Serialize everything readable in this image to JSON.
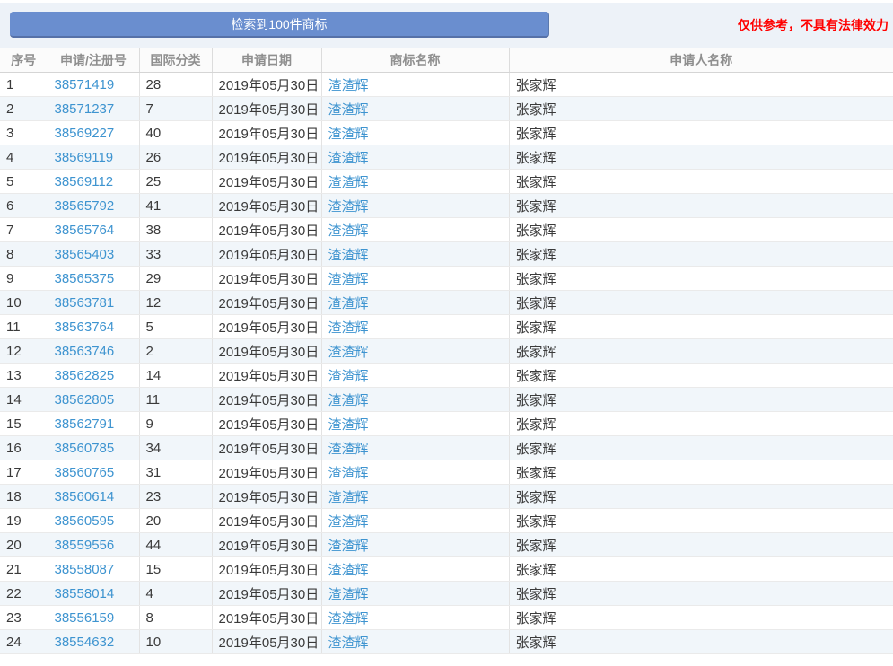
{
  "topbar": {
    "result_banner": "检索到100件商标",
    "disclaimer": "仅供参考，不具有法律效力"
  },
  "table": {
    "columns": [
      "序号",
      "申请/注册号",
      "国际分类",
      "申请日期",
      "商标名称",
      "申请人名称"
    ],
    "rows": [
      {
        "index": "1",
        "reg_no": "38571419",
        "intl_class": "28",
        "date": "2019年05月30日",
        "trademark": "渣渣辉",
        "applicant": "张家辉"
      },
      {
        "index": "2",
        "reg_no": "38571237",
        "intl_class": "7",
        "date": "2019年05月30日",
        "trademark": "渣渣辉",
        "applicant": "张家辉"
      },
      {
        "index": "3",
        "reg_no": "38569227",
        "intl_class": "40",
        "date": "2019年05月30日",
        "trademark": "渣渣辉",
        "applicant": "张家辉"
      },
      {
        "index": "4",
        "reg_no": "38569119",
        "intl_class": "26",
        "date": "2019年05月30日",
        "trademark": "渣渣辉",
        "applicant": "张家辉"
      },
      {
        "index": "5",
        "reg_no": "38569112",
        "intl_class": "25",
        "date": "2019年05月30日",
        "trademark": "渣渣辉",
        "applicant": "张家辉"
      },
      {
        "index": "6",
        "reg_no": "38565792",
        "intl_class": "41",
        "date": "2019年05月30日",
        "trademark": "渣渣辉",
        "applicant": "张家辉"
      },
      {
        "index": "7",
        "reg_no": "38565764",
        "intl_class": "38",
        "date": "2019年05月30日",
        "trademark": "渣渣辉",
        "applicant": "张家辉"
      },
      {
        "index": "8",
        "reg_no": "38565403",
        "intl_class": "33",
        "date": "2019年05月30日",
        "trademark": "渣渣辉",
        "applicant": "张家辉"
      },
      {
        "index": "9",
        "reg_no": "38565375",
        "intl_class": "29",
        "date": "2019年05月30日",
        "trademark": "渣渣辉",
        "applicant": "张家辉"
      },
      {
        "index": "10",
        "reg_no": "38563781",
        "intl_class": "12",
        "date": "2019年05月30日",
        "trademark": "渣渣辉",
        "applicant": "张家辉"
      },
      {
        "index": "11",
        "reg_no": "38563764",
        "intl_class": "5",
        "date": "2019年05月30日",
        "trademark": "渣渣辉",
        "applicant": "张家辉"
      },
      {
        "index": "12",
        "reg_no": "38563746",
        "intl_class": "2",
        "date": "2019年05月30日",
        "trademark": "渣渣辉",
        "applicant": "张家辉"
      },
      {
        "index": "13",
        "reg_no": "38562825",
        "intl_class": "14",
        "date": "2019年05月30日",
        "trademark": "渣渣辉",
        "applicant": "张家辉"
      },
      {
        "index": "14",
        "reg_no": "38562805",
        "intl_class": "11",
        "date": "2019年05月30日",
        "trademark": "渣渣辉",
        "applicant": "张家辉"
      },
      {
        "index": "15",
        "reg_no": "38562791",
        "intl_class": "9",
        "date": "2019年05月30日",
        "trademark": "渣渣辉",
        "applicant": "张家辉"
      },
      {
        "index": "16",
        "reg_no": "38560785",
        "intl_class": "34",
        "date": "2019年05月30日",
        "trademark": "渣渣辉",
        "applicant": "张家辉"
      },
      {
        "index": "17",
        "reg_no": "38560765",
        "intl_class": "31",
        "date": "2019年05月30日",
        "trademark": "渣渣辉",
        "applicant": "张家辉"
      },
      {
        "index": "18",
        "reg_no": "38560614",
        "intl_class": "23",
        "date": "2019年05月30日",
        "trademark": "渣渣辉",
        "applicant": "张家辉"
      },
      {
        "index": "19",
        "reg_no": "38560595",
        "intl_class": "20",
        "date": "2019年05月30日",
        "trademark": "渣渣辉",
        "applicant": "张家辉"
      },
      {
        "index": "20",
        "reg_no": "38559556",
        "intl_class": "44",
        "date": "2019年05月30日",
        "trademark": "渣渣辉",
        "applicant": "张家辉"
      },
      {
        "index": "21",
        "reg_no": "38558087",
        "intl_class": "15",
        "date": "2019年05月30日",
        "trademark": "渣渣辉",
        "applicant": "张家辉"
      },
      {
        "index": "22",
        "reg_no": "38558014",
        "intl_class": "4",
        "date": "2019年05月30日",
        "trademark": "渣渣辉",
        "applicant": "张家辉"
      },
      {
        "index": "23",
        "reg_no": "38556159",
        "intl_class": "8",
        "date": "2019年05月30日",
        "trademark": "渣渣辉",
        "applicant": "张家辉"
      },
      {
        "index": "24",
        "reg_no": "38554632",
        "intl_class": "10",
        "date": "2019年05月30日",
        "trademark": "渣渣辉",
        "applicant": "张家辉"
      }
    ]
  },
  "colors": {
    "banner_blue": "#6a8ecf",
    "link_blue": "#3e94d0",
    "disclaimer_red": "#ff0000",
    "alt_row_blue": "#f1f6fa"
  }
}
